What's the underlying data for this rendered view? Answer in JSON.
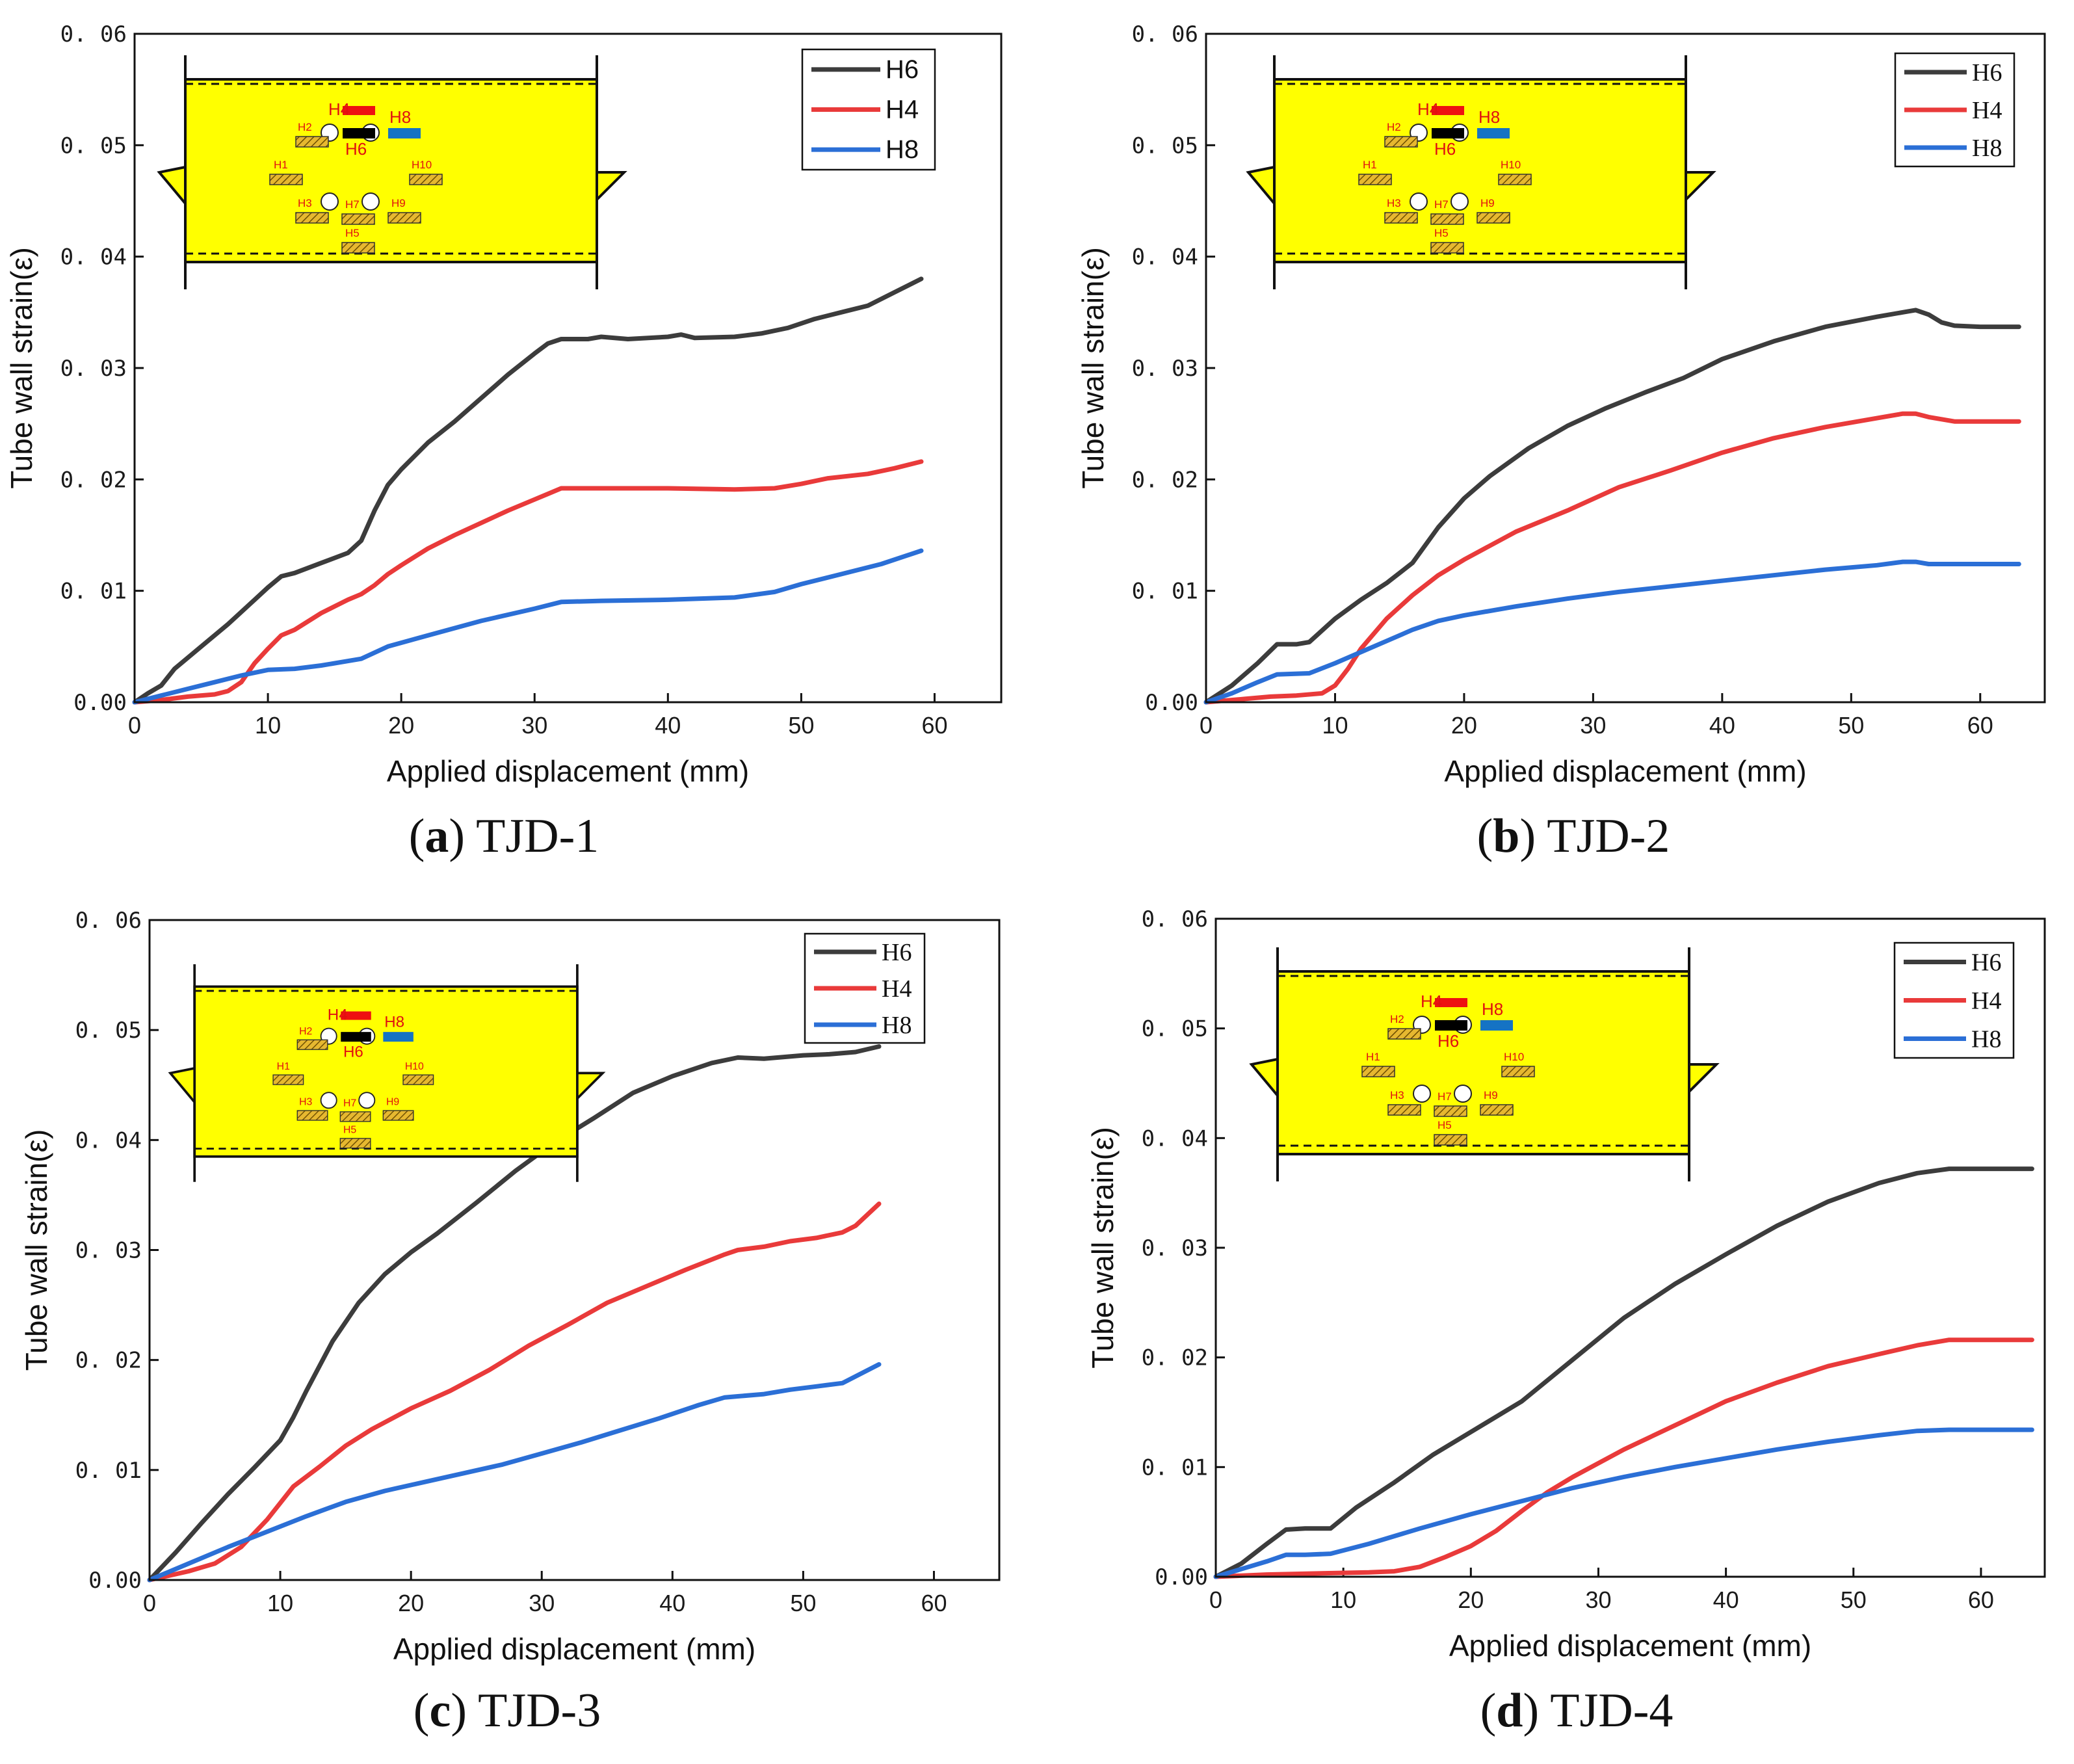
{
  "chart_data": [
    {
      "type": "line",
      "title": "",
      "caption_letter": "a",
      "caption_text": "TJD-1",
      "xlabel": "Applied displacement (mm)",
      "ylabel": "Tube wall strain(ε)",
      "xlim": [
        0,
        65
      ],
      "ylim": [
        0,
        0.06
      ],
      "xticks": [
        "0",
        "10",
        "20",
        "30",
        "40",
        "50",
        "60"
      ],
      "yticks": [
        "0.00",
        "0. 01",
        "0. 02",
        "0. 03",
        "0. 04",
        "0. 05",
        "0. 06"
      ],
      "legend_position": "top-right",
      "series": [
        {
          "name": "H6",
          "color": "#3c3c3c",
          "x": [
            0,
            1,
            2,
            3,
            5,
            7,
            9,
            10,
            11,
            12,
            14,
            16,
            17,
            18,
            19,
            20,
            22,
            24,
            26,
            28,
            30,
            31,
            32,
            34,
            35,
            37,
            40,
            41,
            42,
            45,
            47,
            49,
            51,
            53,
            55,
            57,
            59
          ],
          "y": [
            0,
            0.0008,
            0.0015,
            0.003,
            0.005,
            0.007,
            0.0092,
            0.0103,
            0.0113,
            0.0116,
            0.0125,
            0.0134,
            0.0145,
            0.0172,
            0.0195,
            0.0209,
            0.0233,
            0.0252,
            0.0273,
            0.0294,
            0.0313,
            0.0322,
            0.0326,
            0.0326,
            0.0328,
            0.0326,
            0.0328,
            0.033,
            0.0327,
            0.0328,
            0.0331,
            0.0336,
            0.0344,
            0.035,
            0.0356,
            0.0368,
            0.038
          ]
        },
        {
          "name": "H4",
          "color": "#e93a3a",
          "x": [
            0,
            2,
            4,
            6,
            7,
            8,
            9,
            10,
            11,
            12,
            14,
            16,
            17,
            18,
            19,
            20,
            22,
            24,
            26,
            28,
            30,
            31,
            32,
            35,
            40,
            45,
            48,
            50,
            52,
            55,
            57,
            59
          ],
          "y": [
            0,
            0.0002,
            0.0005,
            0.0007,
            0.001,
            0.0018,
            0.0035,
            0.0048,
            0.006,
            0.0065,
            0.008,
            0.0092,
            0.0097,
            0.0105,
            0.0115,
            0.0123,
            0.0138,
            0.015,
            0.0161,
            0.0172,
            0.0182,
            0.0187,
            0.0192,
            0.0192,
            0.0192,
            0.0191,
            0.0192,
            0.0196,
            0.0201,
            0.0205,
            0.021,
            0.0216
          ]
        },
        {
          "name": "H8",
          "color": "#2b6fd6",
          "x": [
            0,
            2,
            4,
            6,
            8,
            10,
            12,
            14,
            17,
            19,
            22,
            26,
            30,
            32,
            35,
            40,
            45,
            48,
            50,
            53,
            56,
            59
          ],
          "y": [
            0,
            0.0006,
            0.0012,
            0.0018,
            0.0024,
            0.0029,
            0.003,
            0.0033,
            0.0039,
            0.005,
            0.006,
            0.0073,
            0.0084,
            0.009,
            0.0091,
            0.0092,
            0.0094,
            0.0099,
            0.0106,
            0.0115,
            0.0124,
            0.0136
          ]
        }
      ],
      "inset": {
        "labels": [
          "H1",
          "H2",
          "H3",
          "H4",
          "H5",
          "H6",
          "H7",
          "H8",
          "H9",
          "H10"
        ]
      }
    },
    {
      "type": "line",
      "title": "",
      "caption_letter": "b",
      "caption_text": "TJD-2",
      "xlabel": "Applied displacement (mm)",
      "ylabel": "Tube wall strain(ε)",
      "xlim": [
        0,
        65
      ],
      "ylim": [
        0,
        0.06
      ],
      "xticks": [
        "0",
        "10",
        "20",
        "30",
        "40",
        "50",
        "60"
      ],
      "yticks": [
        "0.00",
        "0. 01",
        "0. 02",
        "0. 03",
        "0. 04",
        "0. 05",
        "0. 06"
      ],
      "legend_position": "top-right",
      "series": [
        {
          "name": "H6",
          "color": "#3c3c3c",
          "x": [
            0,
            2,
            4,
            5.5,
            7,
            8,
            10,
            12,
            14,
            16,
            18,
            20,
            22,
            25,
            28,
            31,
            34,
            37,
            40,
            44,
            48,
            52,
            54,
            55,
            56,
            57,
            58,
            60,
            63
          ],
          "y": [
            0,
            0.0015,
            0.0035,
            0.0052,
            0.0052,
            0.0054,
            0.0075,
            0.0092,
            0.0107,
            0.0125,
            0.0157,
            0.0183,
            0.0203,
            0.0228,
            0.0248,
            0.0264,
            0.0278,
            0.0291,
            0.0308,
            0.0324,
            0.0337,
            0.0346,
            0.035,
            0.0352,
            0.0348,
            0.0341,
            0.0338,
            0.0337,
            0.0337
          ]
        },
        {
          "name": "H4",
          "color": "#e93a3a",
          "x": [
            0,
            3,
            5,
            7,
            9,
            10,
            11,
            12,
            14,
            16,
            18,
            20,
            24,
            28,
            32,
            36,
            40,
            44,
            48,
            52,
            54,
            55,
            56,
            58,
            60,
            63
          ],
          "y": [
            0,
            0.0003,
            0.0005,
            0.0006,
            0.0008,
            0.0015,
            0.003,
            0.0048,
            0.0075,
            0.0096,
            0.0114,
            0.0128,
            0.0153,
            0.0172,
            0.0193,
            0.0208,
            0.0224,
            0.0237,
            0.0247,
            0.0255,
            0.0259,
            0.0259,
            0.0256,
            0.0252,
            0.0252,
            0.0252
          ]
        },
        {
          "name": "H8",
          "color": "#2b6fd6",
          "x": [
            0,
            2,
            4,
            5.5,
            8,
            10,
            12,
            14,
            16,
            18,
            20,
            24,
            28,
            32,
            36,
            40,
            44,
            48,
            52,
            54,
            55,
            56,
            58,
            60,
            63
          ],
          "y": [
            0,
            0.0008,
            0.0018,
            0.0025,
            0.0026,
            0.0035,
            0.0045,
            0.0055,
            0.0065,
            0.0073,
            0.0078,
            0.0086,
            0.0093,
            0.0099,
            0.0104,
            0.0109,
            0.0114,
            0.0119,
            0.0123,
            0.0126,
            0.0126,
            0.0124,
            0.0124,
            0.0124,
            0.0124
          ]
        }
      ],
      "inset": {
        "labels": [
          "H1",
          "H2",
          "H3",
          "H4",
          "H5",
          "H6",
          "H7",
          "H8",
          "H9",
          "H10"
        ]
      }
    },
    {
      "type": "line",
      "title": "",
      "caption_letter": "c",
      "caption_text": "TJD-3",
      "xlabel": "Applied displacement (mm)",
      "ylabel": "Tube wall strain(ε)",
      "xlim": [
        0,
        65
      ],
      "ylim": [
        0,
        0.06
      ],
      "xticks": [
        "0",
        "10",
        "20",
        "30",
        "40",
        "50",
        "60"
      ],
      "yticks": [
        "0.00",
        "0. 01",
        "0. 02",
        "0. 03",
        "0. 04",
        "0. 05",
        "0. 06"
      ],
      "legend_position": "top-right",
      "series": [
        {
          "name": "H6",
          "color": "#3c3c3c",
          "x": [
            0,
            2,
            4,
            6,
            8,
            10,
            11,
            12,
            14,
            16,
            18,
            20,
            22,
            25,
            28,
            31,
            34,
            37,
            40,
            43,
            45,
            47,
            50,
            52,
            54,
            55.8
          ],
          "y": [
            0,
            0.0025,
            0.0052,
            0.0078,
            0.0102,
            0.0127,
            0.0148,
            0.0172,
            0.0217,
            0.0252,
            0.0278,
            0.0298,
            0.0315,
            0.0343,
            0.0372,
            0.0398,
            0.042,
            0.0443,
            0.0458,
            0.047,
            0.0475,
            0.0474,
            0.0477,
            0.0478,
            0.048,
            0.0485
          ]
        },
        {
          "name": "H4",
          "color": "#e93a3a",
          "x": [
            0,
            3,
            5,
            7,
            9,
            11,
            13,
            15,
            17,
            20,
            23,
            26,
            29,
            32,
            35,
            38,
            41,
            44,
            45,
            47,
            49,
            51,
            53,
            54,
            55.8
          ],
          "y": [
            0,
            0.0008,
            0.0015,
            0.003,
            0.0055,
            0.0085,
            0.0103,
            0.0122,
            0.0137,
            0.0156,
            0.0172,
            0.0191,
            0.0213,
            0.0232,
            0.0252,
            0.0267,
            0.0282,
            0.0296,
            0.03,
            0.0303,
            0.0308,
            0.0311,
            0.0316,
            0.0322,
            0.0342
          ]
        },
        {
          "name": "H8",
          "color": "#2b6fd6",
          "x": [
            0,
            3,
            6,
            9,
            12,
            15,
            18,
            21,
            24,
            27,
            30,
            33,
            36,
            39,
            42,
            44,
            45,
            47,
            49,
            51,
            53,
            55.8
          ],
          "y": [
            0,
            0.0015,
            0.003,
            0.0044,
            0.0058,
            0.0071,
            0.0081,
            0.0089,
            0.0097,
            0.0105,
            0.0115,
            0.0125,
            0.0136,
            0.0147,
            0.0159,
            0.0166,
            0.0167,
            0.0169,
            0.0173,
            0.0176,
            0.0179,
            0.0196
          ]
        }
      ],
      "inset": {
        "labels": [
          "H1",
          "H2",
          "H3",
          "H4",
          "H5",
          "H6",
          "H7",
          "H8",
          "H9",
          "H10"
        ]
      }
    },
    {
      "type": "line",
      "title": "",
      "caption_letter": "d",
      "caption_text": "TJD-4",
      "xlabel": "Applied displacement (mm)",
      "ylabel": "Tube wall strain(ε)",
      "xlim": [
        0,
        65
      ],
      "ylim": [
        0,
        0.06
      ],
      "xticks": [
        "0",
        "10",
        "20",
        "30",
        "40",
        "50",
        "60"
      ],
      "yticks": [
        "0.00",
        "0. 01",
        "0. 02",
        "0. 03",
        "0. 04",
        "0. 05",
        "0. 06"
      ],
      "legend_position": "top-right",
      "series": [
        {
          "name": "H6",
          "color": "#3c3c3c",
          "x": [
            0,
            2,
            4,
            5.5,
            7,
            9,
            11,
            14,
            17,
            20,
            24,
            28,
            32,
            36,
            40,
            44,
            48,
            52,
            55,
            57.5,
            60,
            64
          ],
          "y": [
            0,
            0.0012,
            0.003,
            0.0043,
            0.0044,
            0.0044,
            0.0063,
            0.0086,
            0.0111,
            0.0132,
            0.016,
            0.0198,
            0.0236,
            0.0267,
            0.0294,
            0.032,
            0.0342,
            0.0359,
            0.0368,
            0.0372,
            0.0372,
            0.0372
          ]
        },
        {
          "name": "H4",
          "color": "#e93a3a",
          "x": [
            0,
            4,
            8,
            12,
            14,
            16,
            18,
            20,
            22,
            24,
            26,
            28,
            32,
            36,
            40,
            44,
            48,
            52,
            55,
            57.5,
            60,
            64
          ],
          "y": [
            0,
            0.0002,
            0.0003,
            0.0004,
            0.0005,
            0.0009,
            0.0018,
            0.0028,
            0.0042,
            0.006,
            0.0077,
            0.0091,
            0.0116,
            0.0138,
            0.016,
            0.0177,
            0.0192,
            0.0203,
            0.0211,
            0.0216,
            0.0216,
            0.0216
          ]
        },
        {
          "name": "H8",
          "color": "#2b6fd6",
          "x": [
            0,
            2,
            4,
            5.5,
            7,
            9,
            12,
            16,
            20,
            24,
            28,
            32,
            36,
            40,
            44,
            48,
            52,
            55,
            57.5,
            60,
            64
          ],
          "y": [
            0,
            0.0007,
            0.0014,
            0.002,
            0.002,
            0.0021,
            0.003,
            0.0044,
            0.0057,
            0.0069,
            0.0081,
            0.0091,
            0.01,
            0.0108,
            0.0116,
            0.0123,
            0.0129,
            0.0133,
            0.0134,
            0.0134,
            0.0134
          ]
        }
      ],
      "inset": {
        "labels": [
          "H1",
          "H2",
          "H3",
          "H4",
          "H5",
          "H6",
          "H7",
          "H8",
          "H9",
          "H10"
        ]
      }
    }
  ]
}
